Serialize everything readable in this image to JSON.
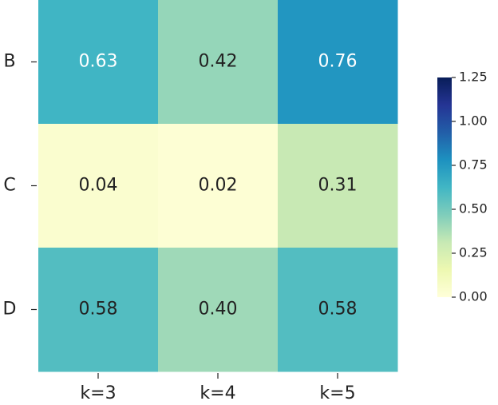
{
  "chart_data": {
    "type": "heatmap",
    "x_categories": [
      "k=3",
      "k=4",
      "k=5"
    ],
    "y_categories": [
      "B",
      "C",
      "D"
    ],
    "values": [
      [
        0.63,
        0.42,
        0.76
      ],
      [
        0.04,
        0.02,
        0.31
      ],
      [
        0.58,
        0.4,
        0.58
      ]
    ],
    "value_labels": [
      [
        "0.63",
        "0.42",
        "0.76"
      ],
      [
        "0.04",
        "0.02",
        "0.31"
      ],
      [
        "0.58",
        "0.40",
        "0.58"
      ]
    ],
    "cmap": "YlGnBu",
    "clim": [
      0,
      1.25
    ],
    "cticks": [
      {
        "value": 0,
        "label": "0.00"
      },
      {
        "value": 0.25,
        "label": "0.25"
      },
      {
        "value": 0.5,
        "label": "0.50"
      },
      {
        "value": 0.75,
        "label": "0.75"
      },
      {
        "value": 1,
        "label": "1.00"
      },
      {
        "value": 1.25,
        "label": "1.25"
      }
    ]
  }
}
